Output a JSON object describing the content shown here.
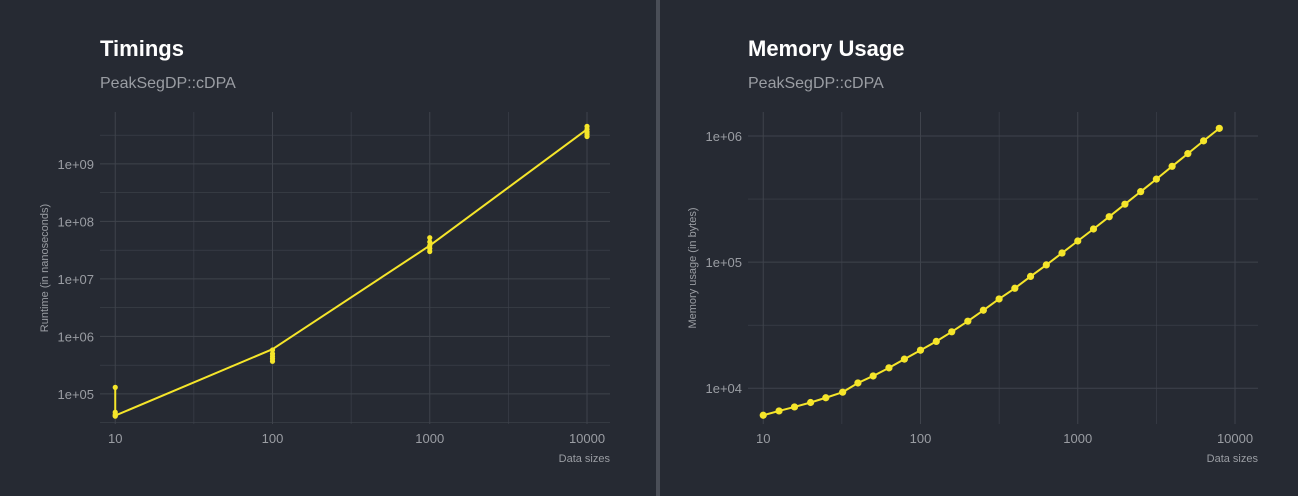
{
  "colors": {
    "background": "#262a33",
    "grid": "#3f434c",
    "series": "#f5e52a",
    "title": "#ffffff",
    "subtitle": "#9a9da3",
    "axis_text": "#9a9da3"
  },
  "chart_data": [
    {
      "type": "line",
      "title": "Timings",
      "subtitle": "PeakSegDP::cDPA",
      "xlabel": "Data sizes",
      "ylabel": "Runtime (in nanoseconds)",
      "x_scale": "log10",
      "y_scale": "log10",
      "xlim": [
        8,
        14000
      ],
      "ylim": [
        30000,
        8000000000
      ],
      "x_ticks": [
        10,
        100,
        1000,
        10000
      ],
      "x_tick_labels": [
        "10",
        "100",
        "1000",
        "10000"
      ],
      "y_ticks": [
        100000,
        1000000,
        10000000,
        100000000,
        1000000000
      ],
      "y_tick_labels": [
        "1e+05",
        "1e+06",
        "1e+07",
        "1e+08",
        "1e+09"
      ],
      "grid": true,
      "series": [
        {
          "x": [
            10,
            10,
            10,
            10,
            10,
            100,
            100,
            100,
            100,
            100,
            1000,
            1000,
            1000,
            1000,
            1000,
            10000,
            10000,
            10000,
            10000,
            10000
          ],
          "y": [
            130000,
            48000,
            44000,
            42000,
            41000,
            580000,
            500000,
            450000,
            410000,
            370000,
            52000000,
            44000000,
            38000000,
            34000000,
            30000000,
            4500000000,
            4000000000,
            3600000000,
            3300000000,
            3000000000
          ]
        }
      ],
      "line_path": {
        "x": [
          10,
          100,
          1000,
          10000
        ],
        "y": [
          42000,
          600000,
          38000000,
          4000000000
        ]
      }
    },
    {
      "type": "line",
      "title": "Memory Usage",
      "subtitle": "PeakSegDP::cDPA",
      "xlabel": "Data sizes",
      "ylabel": "Memory usage (in bytes)",
      "x_scale": "log10",
      "y_scale": "log10",
      "xlim": [
        8,
        14000
      ],
      "ylim": [
        5200,
        1550000
      ],
      "x_ticks": [
        10,
        100,
        1000,
        10000
      ],
      "x_tick_labels": [
        "10",
        "100",
        "1000",
        "10000"
      ],
      "y_ticks": [
        10000,
        100000,
        1000000
      ],
      "y_tick_labels": [
        "1e+04",
        "1e+05",
        "1e+06"
      ],
      "grid": true,
      "series": [
        {
          "x": [
            10,
            12.6,
            15.8,
            20,
            25,
            32,
            40,
            50,
            63,
            79,
            100,
            126,
            158,
            200,
            251,
            316,
            398,
            501,
            631,
            794,
            1000,
            1259,
            1585,
            1995,
            2512,
            3162,
            3981,
            5012,
            6310,
            7943
          ],
          "y": [
            6100,
            6600,
            7100,
            7700,
            8400,
            9300,
            11000,
            12500,
            14500,
            17000,
            20000,
            23500,
            28000,
            34000,
            41500,
            51000,
            62000,
            77000,
            95000,
            118000,
            147000,
            183000,
            229000,
            288000,
            362000,
            455000,
            575000,
            725000,
            915000,
            1150000
          ]
        }
      ]
    }
  ]
}
